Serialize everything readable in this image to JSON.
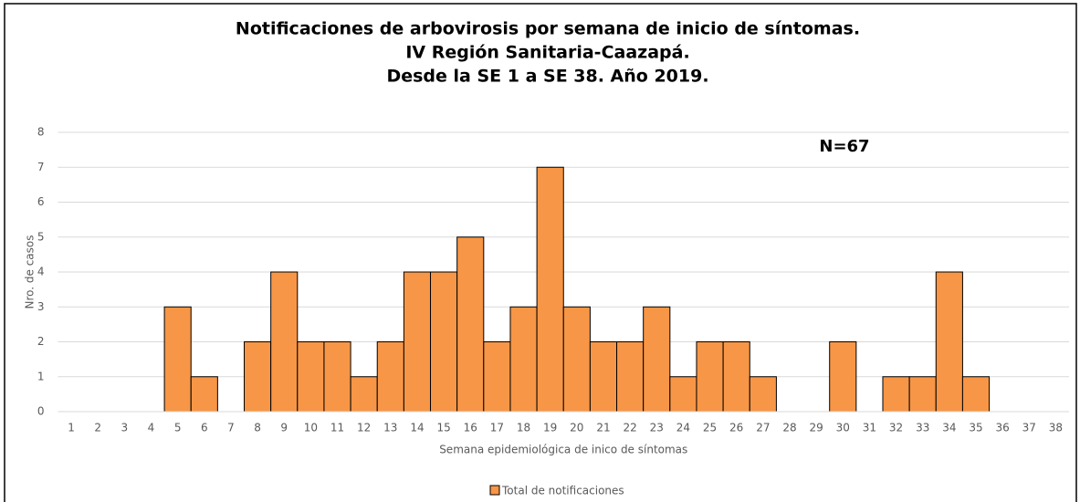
{
  "chart_data": {
    "type": "bar",
    "title": [
      "Notificaciones de arbovirosis por semana de inicio de síntomas.",
      "IV Región Sanitaria-Caazapá.",
      "Desde la SE 1 a SE 38. Año 2019."
    ],
    "annotation": "N=67",
    "x_label": "Semana epidemiológica de inico de síntomas",
    "y_label": "Nro. de casos",
    "categories": [
      "1",
      "2",
      "3",
      "4",
      "5",
      "6",
      "7",
      "8",
      "9",
      "10",
      "11",
      "12",
      "13",
      "14",
      "15",
      "16",
      "17",
      "18",
      "19",
      "20",
      "21",
      "22",
      "23",
      "24",
      "25",
      "26",
      "27",
      "28",
      "29",
      "30",
      "31",
      "32",
      "33",
      "34",
      "35",
      "36",
      "37",
      "38"
    ],
    "series": [
      {
        "name": "Total de notificaciones",
        "color": "#f79646",
        "values": [
          0,
          0,
          0,
          0,
          3,
          1,
          0,
          2,
          4,
          2,
          2,
          1,
          2,
          4,
          4,
          5,
          2,
          3,
          7,
          3,
          2,
          2,
          3,
          1,
          2,
          2,
          1,
          0,
          0,
          2,
          0,
          1,
          1,
          4,
          1,
          0,
          0,
          0
        ]
      }
    ],
    "ylim": [
      0,
      8
    ],
    "yticks": [
      0,
      1,
      2,
      3,
      4,
      5,
      6,
      7,
      8
    ],
    "grid": true,
    "legend": "bottom"
  }
}
